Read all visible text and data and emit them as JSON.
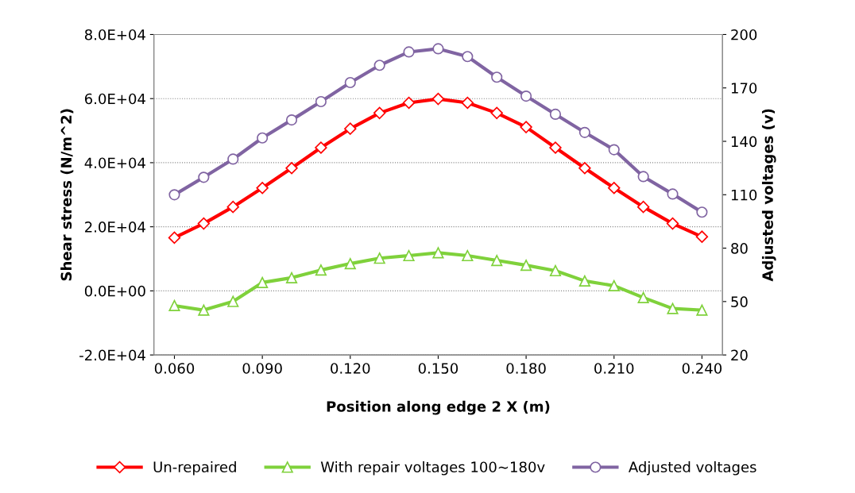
{
  "chart_data": {
    "type": "line",
    "xlabel": "Position along edge 2 X (m)",
    "ylabel": "Shear stress (N/m^2)",
    "y2label": "Adjusted voltages (v)",
    "x": [
      0.06,
      0.07,
      0.08,
      0.09,
      0.1,
      0.11,
      0.12,
      0.13,
      0.14,
      0.15,
      0.16,
      0.17,
      0.18,
      0.19,
      0.2,
      0.21,
      0.22,
      0.23,
      0.24
    ],
    "series": [
      {
        "name": "Un-repaired",
        "color": "#ff0000",
        "marker": "diamond",
        "values": [
          16600,
          21000,
          26200,
          32100,
          38300,
          44700,
          50600,
          55500,
          58700,
          59900,
          58700,
          55500,
          51100,
          44700,
          38300,
          32100,
          26200,
          21000,
          16900
        ]
      },
      {
        "name": "With repair voltages 100~180v",
        "color": "#7fd13b",
        "marker": "triangle",
        "values": [
          -4600,
          -6000,
          -3300,
          2600,
          4100,
          6500,
          8500,
          10200,
          11000,
          11900,
          11000,
          9500,
          8000,
          6300,
          3100,
          1600,
          -2100,
          -5500,
          -6000
        ]
      },
      {
        "name": "Adjusted voltages",
        "color": "#8064a2",
        "marker": "circle",
        "axis": "y2",
        "values": [
          110,
          119.8,
          130,
          141.9,
          152,
          162.3,
          173,
          182.7,
          190.2,
          192,
          187.6,
          176,
          165.4,
          155.2,
          145,
          135.3,
          120.2,
          110.4,
          100.2
        ]
      }
    ],
    "xlim": [
      0.053,
      0.247
    ],
    "xticks": [
      {
        "value": 0.06,
        "label": "0.060"
      },
      {
        "value": 0.09,
        "label": "0.090"
      },
      {
        "value": 0.12,
        "label": "0.120"
      },
      {
        "value": 0.15,
        "label": "0.150"
      },
      {
        "value": 0.18,
        "label": "0.180"
      },
      {
        "value": 0.21,
        "label": "0.210"
      },
      {
        "value": 0.24,
        "label": "0.240"
      }
    ],
    "ylim": [
      -20000,
      80000
    ],
    "yticks": [
      {
        "value": -20000,
        "label": "-2.0E+04"
      },
      {
        "value": 0,
        "label": "0.0E+00"
      },
      {
        "value": 20000,
        "label": "2.0E+04"
      },
      {
        "value": 40000,
        "label": "4.0E+04"
      },
      {
        "value": 60000,
        "label": "6.0E+04"
      },
      {
        "value": 80000,
        "label": "8.0E+04"
      }
    ],
    "y2lim": [
      20,
      200
    ],
    "y2ticks": [
      20,
      50,
      80,
      110,
      140,
      170,
      200
    ],
    "grid": "y",
    "legend": "bottom",
    "line_style": "solid"
  }
}
